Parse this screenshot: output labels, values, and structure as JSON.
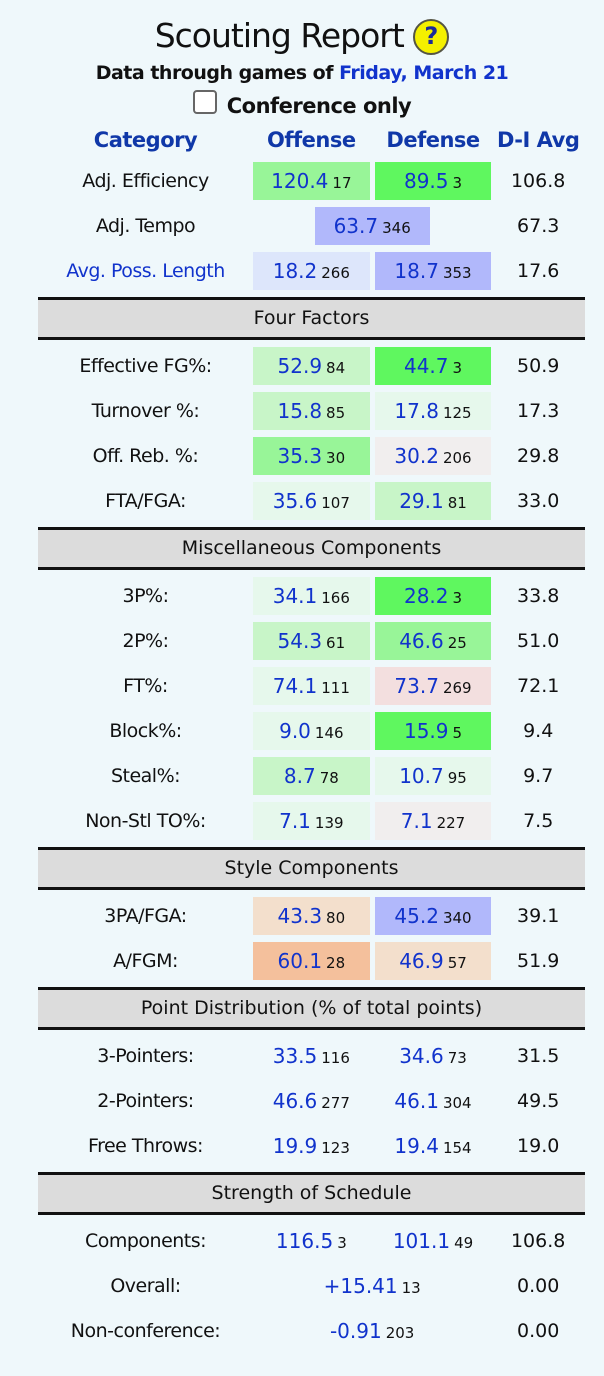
{
  "header": {
    "title": "Scouting Report",
    "help_icon": "?",
    "subtitle_prefix": "Data through games of",
    "date": "Friday, March 21",
    "conference_only_label": "Conference only",
    "conference_only_checked": false
  },
  "columns": [
    "Category",
    "Offense",
    "Defense",
    "D-I Avg"
  ],
  "colors": {
    "green_strong": "#5ff75f",
    "green_med": "#98f598",
    "green_light": "#c8f5c8",
    "green_pale": "#e6f8ec",
    "blue_strong": "#b1b8fb",
    "blue_light": "#dde6fb",
    "pink": "#f3dfdf",
    "pink_pale": "#f1eeee",
    "orange": "#f4c09c",
    "orange_light": "#f3dfcc"
  },
  "sections": [
    {
      "title": null,
      "rows": [
        {
          "label": "Adj. Efficiency",
          "off": {
            "v": "120.4",
            "r": "17",
            "c": "green_med"
          },
          "def": {
            "v": "89.5",
            "r": "3",
            "c": "green_strong"
          },
          "avg": "106.8"
        },
        {
          "label": "Adj. Tempo",
          "span": {
            "v": "63.7",
            "r": "346",
            "c": "blue_strong"
          },
          "avg": "67.3"
        },
        {
          "label": "Avg. Poss. Length",
          "link": true,
          "off": {
            "v": "18.2",
            "r": "266",
            "c": "blue_light"
          },
          "def": {
            "v": "18.7",
            "r": "353",
            "c": "blue_strong"
          },
          "avg": "17.6"
        }
      ]
    },
    {
      "title": "Four Factors",
      "rows": [
        {
          "label": "Effective FG%:",
          "off": {
            "v": "52.9",
            "r": "84",
            "c": "green_light"
          },
          "def": {
            "v": "44.7",
            "r": "3",
            "c": "green_strong"
          },
          "avg": "50.9"
        },
        {
          "label": "Turnover %:",
          "off": {
            "v": "15.8",
            "r": "85",
            "c": "green_light"
          },
          "def": {
            "v": "17.8",
            "r": "125",
            "c": "green_pale"
          },
          "avg": "17.3"
        },
        {
          "label": "Off. Reb. %:",
          "off": {
            "v": "35.3",
            "r": "30",
            "c": "green_med"
          },
          "def": {
            "v": "30.2",
            "r": "206",
            "c": "pink_pale"
          },
          "avg": "29.8"
        },
        {
          "label": "FTA/FGA:",
          "off": {
            "v": "35.6",
            "r": "107",
            "c": "green_pale"
          },
          "def": {
            "v": "29.1",
            "r": "81",
            "c": "green_light"
          },
          "avg": "33.0"
        }
      ]
    },
    {
      "title": "Miscellaneous Components",
      "rows": [
        {
          "label": "3P%:",
          "off": {
            "v": "34.1",
            "r": "166",
            "c": "green_pale"
          },
          "def": {
            "v": "28.2",
            "r": "3",
            "c": "green_strong"
          },
          "avg": "33.8"
        },
        {
          "label": "2P%:",
          "off": {
            "v": "54.3",
            "r": "61",
            "c": "green_light"
          },
          "def": {
            "v": "46.6",
            "r": "25",
            "c": "green_med"
          },
          "avg": "51.0"
        },
        {
          "label": "FT%:",
          "off": {
            "v": "74.1",
            "r": "111",
            "c": "green_pale"
          },
          "def": {
            "v": "73.7",
            "r": "269",
            "c": "pink"
          },
          "avg": "72.1"
        },
        {
          "label": "Block%:",
          "off": {
            "v": "9.0",
            "r": "146",
            "c": "green_pale"
          },
          "def": {
            "v": "15.9",
            "r": "5",
            "c": "green_strong"
          },
          "avg": "9.4"
        },
        {
          "label": "Steal%:",
          "off": {
            "v": "8.7",
            "r": "78",
            "c": "green_light"
          },
          "def": {
            "v": "10.7",
            "r": "95",
            "c": "green_pale"
          },
          "avg": "9.7"
        },
        {
          "label": "Non-Stl TO%:",
          "off": {
            "v": "7.1",
            "r": "139",
            "c": "green_pale"
          },
          "def": {
            "v": "7.1",
            "r": "227",
            "c": "pink_pale"
          },
          "avg": "7.5"
        }
      ]
    },
    {
      "title": "Style Components",
      "rows": [
        {
          "label": "3PA/FGA:",
          "off": {
            "v": "43.3",
            "r": "80",
            "c": "orange_light"
          },
          "def": {
            "v": "45.2",
            "r": "340",
            "c": "blue_strong"
          },
          "avg": "39.1"
        },
        {
          "label": "A/FGM:",
          "off": {
            "v": "60.1",
            "r": "28",
            "c": "orange"
          },
          "def": {
            "v": "46.9",
            "r": "57",
            "c": "orange_light"
          },
          "avg": "51.9"
        }
      ]
    },
    {
      "title": "Point Distribution (% of total points)",
      "rows": [
        {
          "label": "3-Pointers:",
          "off": {
            "v": "33.5",
            "r": "116"
          },
          "def": {
            "v": "34.6",
            "r": "73"
          },
          "avg": "31.5"
        },
        {
          "label": "2-Pointers:",
          "off": {
            "v": "46.6",
            "r": "277"
          },
          "def": {
            "v": "46.1",
            "r": "304"
          },
          "avg": "49.5"
        },
        {
          "label": "Free Throws:",
          "off": {
            "v": "19.9",
            "r": "123"
          },
          "def": {
            "v": "19.4",
            "r": "154"
          },
          "avg": "19.0"
        }
      ]
    },
    {
      "title": "Strength of Schedule",
      "rows": [
        {
          "label": "Components:",
          "off": {
            "v": "116.5",
            "r": "3"
          },
          "def": {
            "v": "101.1",
            "r": "49"
          },
          "avg": "106.8"
        },
        {
          "label": "Overall:",
          "span": {
            "v": "+15.41",
            "r": "13"
          },
          "avg": "0.00"
        },
        {
          "label": "Non-conference:",
          "span": {
            "v": "-0.91",
            "r": "203"
          },
          "avg": "0.00"
        }
      ]
    }
  ]
}
